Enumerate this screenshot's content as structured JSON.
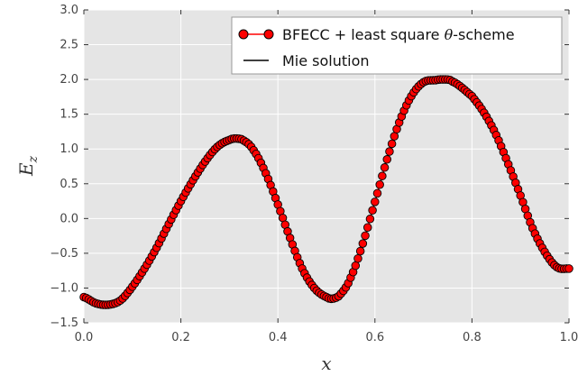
{
  "chart_data": {
    "type": "line",
    "title": "",
    "xlabel": "x",
    "ylabel_main": "E",
    "ylabel_sub": "z",
    "xlim": [
      0.0,
      1.0
    ],
    "ylim": [
      -1.5,
      3.0
    ],
    "xticks": [
      0.0,
      0.2,
      0.4,
      0.6,
      0.8,
      1.0
    ],
    "xtick_labels": [
      "0.0",
      "0.2",
      "0.4",
      "0.6",
      "0.8",
      "1.0"
    ],
    "yticks": [
      -1.5,
      -1.0,
      -0.5,
      0.0,
      0.5,
      1.0,
      1.5,
      2.0,
      2.5,
      3.0
    ],
    "ytick_labels": [
      "−1.5",
      "−1.0",
      "−0.5",
      "0.0",
      "0.5",
      "1.0",
      "1.5",
      "2.0",
      "2.5",
      "3.0"
    ],
    "grid": true,
    "background_color": "#e5e5e5",
    "legend_position": "top-right",
    "x": [
      0.0,
      0.025,
      0.05,
      0.075,
      0.1,
      0.125,
      0.15,
      0.175,
      0.2,
      0.225,
      0.25,
      0.275,
      0.3,
      0.315,
      0.33,
      0.35,
      0.375,
      0.4,
      0.425,
      0.45,
      0.475,
      0.5,
      0.515,
      0.53,
      0.55,
      0.575,
      0.6,
      0.625,
      0.65,
      0.675,
      0.7,
      0.725,
      0.74,
      0.76,
      0.8,
      0.825,
      0.85,
      0.875,
      0.9,
      0.925,
      0.95,
      0.975,
      1.0
    ],
    "series": [
      {
        "name_prefix": "BFECC + least square ",
        "name_symbol": "θ",
        "name_suffix": "-scheme",
        "color": "#ff0000",
        "marker_edge": "#000000",
        "marker": "circle",
        "y": [
          -1.13,
          -1.22,
          -1.24,
          -1.18,
          -0.98,
          -0.72,
          -0.42,
          -0.08,
          0.25,
          0.55,
          0.82,
          1.03,
          1.13,
          1.15,
          1.12,
          0.98,
          0.65,
          0.2,
          -0.28,
          -0.72,
          -1.0,
          -1.13,
          -1.15,
          -1.08,
          -0.85,
          -0.36,
          0.24,
          0.85,
          1.38,
          1.76,
          1.96,
          1.99,
          2.0,
          1.97,
          1.76,
          1.52,
          1.2,
          0.78,
          0.33,
          -0.14,
          -0.48,
          -0.7,
          -0.72
        ]
      },
      {
        "name": "Mie solution",
        "color": "#000000",
        "marker": "none",
        "y": [
          -1.13,
          -1.22,
          -1.24,
          -1.18,
          -0.98,
          -0.72,
          -0.42,
          -0.08,
          0.25,
          0.55,
          0.82,
          1.03,
          1.13,
          1.15,
          1.12,
          0.98,
          0.65,
          0.2,
          -0.28,
          -0.72,
          -1.0,
          -1.13,
          -1.15,
          -1.08,
          -0.85,
          -0.36,
          0.24,
          0.85,
          1.38,
          1.76,
          1.96,
          1.99,
          2.0,
          1.97,
          1.76,
          1.52,
          1.2,
          0.78,
          0.33,
          -0.14,
          -0.48,
          -0.7,
          -0.72
        ]
      }
    ]
  }
}
